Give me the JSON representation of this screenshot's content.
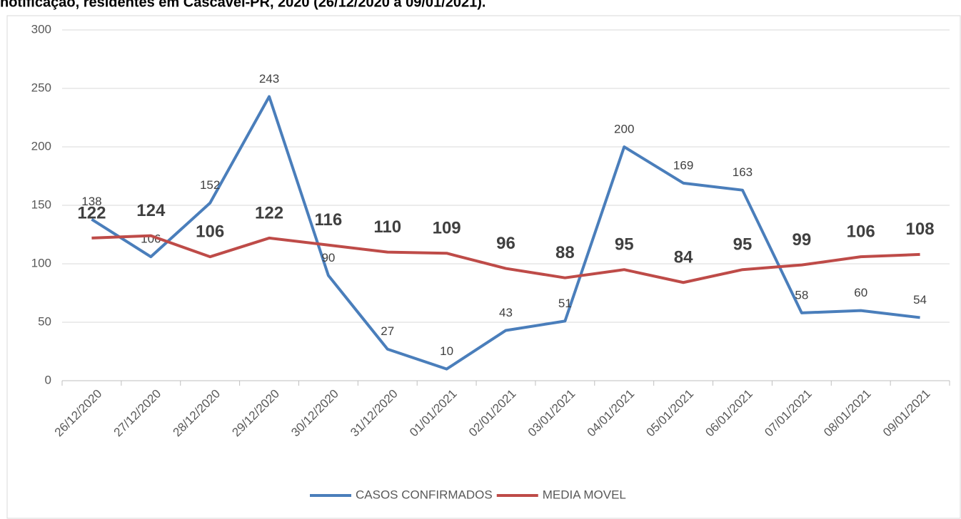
{
  "chart_data": {
    "type": "line",
    "title": "notificação, residentes em Cascavel-PR, 2020 (26/12/2020 a 09/01/2021).",
    "categories": [
      "26/12/2020",
      "27/12/2020",
      "28/12/2020",
      "29/12/2020",
      "30/12/2020",
      "31/12/2020",
      "01/01/2021",
      "02/01/2021",
      "03/01/2021",
      "04/01/2021",
      "05/01/2021",
      "06/01/2021",
      "07/01/2021",
      "08/01/2021",
      "09/01/2021"
    ],
    "series": [
      {
        "name": "CASOS CONFIRMADOS",
        "color": "#4a7ebb",
        "values": [
          138,
          106,
          152,
          243,
          90,
          27,
          10,
          43,
          51,
          200,
          169,
          163,
          58,
          60,
          54
        ]
      },
      {
        "name": "MEDIA MOVEL",
        "color": "#be4b48",
        "values": [
          122,
          124,
          106,
          122,
          116,
          110,
          109,
          96,
          88,
          95,
          84,
          95,
          99,
          106,
          108
        ]
      }
    ],
    "ylim": [
      0,
      300
    ],
    "yticks": [
      0,
      50,
      100,
      150,
      200,
      250,
      300
    ],
    "grid": true,
    "legend": "bottom"
  }
}
